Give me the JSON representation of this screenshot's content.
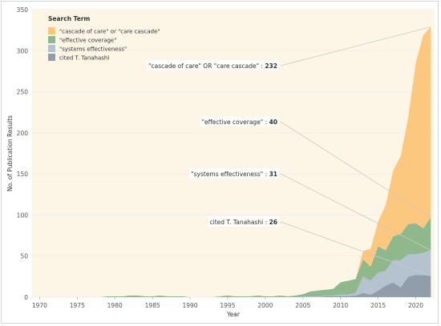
{
  "chart_data": {
    "type": "area",
    "stacked": true,
    "xlabel": "Year",
    "ylabel": "No. of Publication Results",
    "xlim": [
      1969,
      2022.5
    ],
    "ylim": [
      0,
      350
    ],
    "xticks": [
      "1970",
      "1975",
      "1980",
      "1985",
      "1990",
      "1995",
      "2000",
      "2005",
      "2010",
      "2015",
      "2020"
    ],
    "yticks": [
      "0",
      "50",
      "100",
      "150",
      "200",
      "250",
      "300",
      "350"
    ],
    "plot_background": "#fdf5e6",
    "legend": {
      "title": "Search Term",
      "placement": "top-left",
      "entries": [
        {
          "label": "\"cascade of care\" or \"care cascade\"",
          "color": "#fcc77e"
        },
        {
          "label": "\"effective coverage\"",
          "color": "#8fb98c"
        },
        {
          "label": "\"systems effectiveness\"",
          "color": "#b4c3cf"
        },
        {
          "label": "cited T. Tanahashi",
          "color": "#8f9eaa"
        }
      ]
    },
    "series": [
      {
        "name": "cited T. Tanahashi",
        "color": "#8f9eaa",
        "x": [
          2007,
          2008,
          2009,
          2010,
          2011,
          2012,
          2013,
          2014,
          2015,
          2016,
          2017,
          2018,
          2019,
          2020,
          2021,
          2022
        ],
        "values": [
          0,
          1,
          1,
          1,
          1,
          2,
          5,
          3,
          8,
          14,
          18,
          12,
          25,
          27,
          27,
          26
        ]
      },
      {
        "name": "\"systems effectiveness\"",
        "color": "#b4c3cf",
        "x": [
          1994,
          2000,
          2004,
          2006,
          2007,
          2008,
          2009,
          2010,
          2011,
          2012,
          2013,
          2014,
          2015,
          2016,
          2017,
          2018,
          2019,
          2020,
          2021,
          2022
        ],
        "values": [
          0,
          0,
          0,
          1,
          1,
          1,
          1,
          2,
          2,
          3,
          20,
          17,
          22,
          18,
          27,
          33,
          27,
          25,
          27,
          31
        ]
      },
      {
        "name": "\"effective coverage\"",
        "color": "#8fb98c",
        "x": [
          1969,
          1978,
          1979,
          1980,
          1981,
          1982,
          1983,
          1984,
          1985,
          1986,
          1987,
          1988,
          1989,
          1990,
          1993,
          1994,
          1995,
          1996,
          1997,
          1998,
          1999,
          2000,
          2001,
          2002,
          2003,
          2004,
          2005,
          2006,
          2007,
          2008,
          2009,
          2010,
          2011,
          2012,
          2013,
          2014,
          2015,
          2016,
          2017,
          2018,
          2019,
          2020,
          2021,
          2022
        ],
        "values": [
          0,
          0,
          1,
          1,
          1,
          2,
          2,
          1,
          1,
          2,
          1,
          1,
          1,
          0,
          0,
          1,
          2,
          1,
          1,
          1,
          2,
          1,
          1,
          2,
          1,
          2,
          3,
          6,
          7,
          7,
          8,
          15,
          17,
          17,
          21,
          17,
          32,
          25,
          29,
          32,
          37,
          38,
          30,
          40
        ]
      },
      {
        "name": "\"cascade of care\" OR \"care cascade\"",
        "color": "#fcc77e",
        "x": [
          2011,
          2012,
          2013,
          2014,
          2015,
          2016,
          2017,
          2018,
          2019,
          2020,
          2021,
          2022
        ],
        "values": [
          0,
          0,
          10,
          22,
          30,
          55,
          80,
          95,
          130,
          195,
          235,
          232
        ]
      }
    ],
    "annotations": [
      {
        "label": "\"cascade of care\" OR \"care cascade\" : ",
        "value": "232"
      },
      {
        "label": "\"effective coverage\" : ",
        "value": "40"
      },
      {
        "label": "\"systems effectiveness\" : ",
        "value": "31"
      },
      {
        "label": "cited T. Tanahashi : ",
        "value": "26"
      }
    ]
  }
}
